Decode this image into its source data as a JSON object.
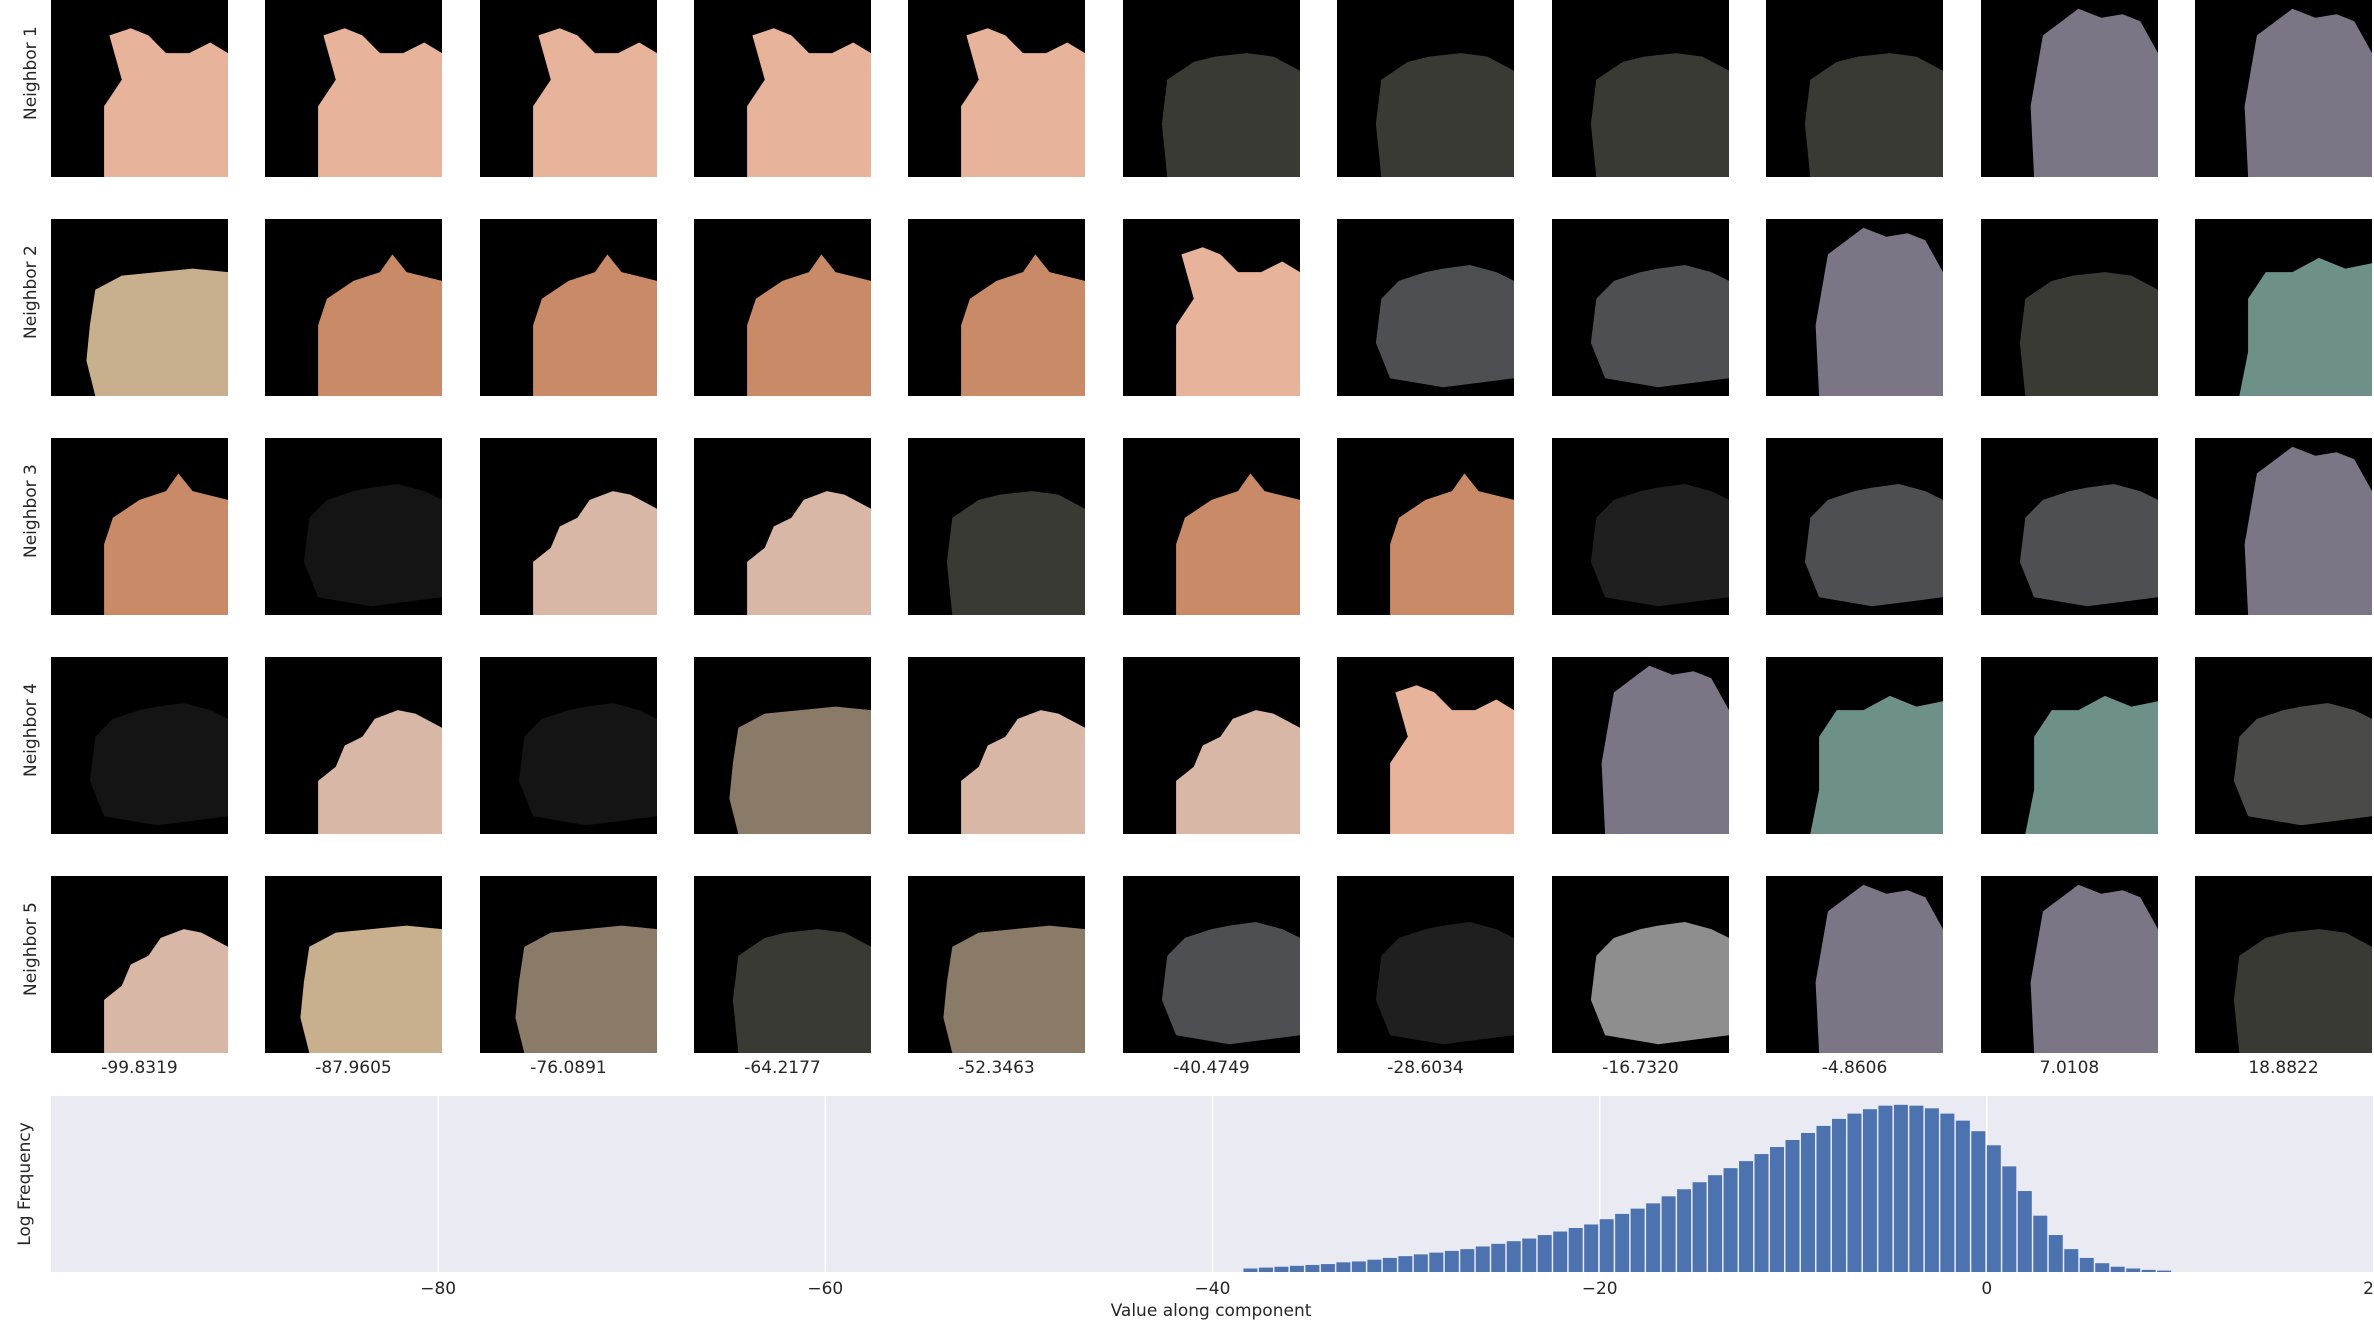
{
  "row_labels": [
    "Neighbor 1",
    "Neighbor 2",
    "Neighbor 3",
    "Neighbor 4",
    "Neighbor 5"
  ],
  "column_values": [
    "-99.8319",
    "-87.9605",
    "-76.0891",
    "-64.2177",
    "-52.3463",
    "-40.4749",
    "-28.6034",
    "-16.7320",
    "-4.8606",
    "7.0108",
    "18.8822"
  ],
  "tile_colors": [
    [
      "#e7b39b",
      "#e7b39b",
      "#e7b39b",
      "#e7b39b",
      "#e7b39b",
      "#3a3a35",
      "#3a3a35",
      "#3a3a35",
      "#3a3a35",
      "#7b7585",
      "#7b7585"
    ],
    [
      "#c8b08e",
      "#c98a68",
      "#c98a68",
      "#c98a68",
      "#c98a68",
      "#e7b39b",
      "#4e4f52",
      "#4e4f52",
      "#7b7585",
      "#3a3a35",
      "#6d9088"
    ],
    [
      "#c98a68",
      "#141414",
      "#d8b7a6",
      "#d8b7a6",
      "#3a3a35",
      "#c98a68",
      "#c98a68",
      "#1f1f1f",
      "#4e4f52",
      "#4e4f52",
      "#7b7585"
    ],
    [
      "#141414",
      "#d8b7a6",
      "#141414",
      "#8a7a68",
      "#d8b7a6",
      "#d8b7a6",
      "#e7b39b",
      "#7b7585",
      "#6d9088",
      "#6d9088",
      "#4a4a48"
    ],
    [
      "#d8b7a6",
      "#c8b08e",
      "#8a7a68",
      "#3a3a35",
      "#8a7a68",
      "#4e4f52",
      "#1f1f1f",
      "#8e8e8e",
      "#7b7585",
      "#7b7585",
      "#3a3a35"
    ]
  ],
  "tile_shapes": [
    [
      "A",
      "A",
      "A",
      "A",
      "A",
      "B",
      "B",
      "B",
      "B",
      "C",
      "C"
    ],
    [
      "D",
      "E",
      "E",
      "E",
      "E",
      "A",
      "F",
      "F",
      "C",
      "B",
      "G"
    ],
    [
      "E",
      "F",
      "H",
      "H",
      "B",
      "E",
      "E",
      "F",
      "F",
      "F",
      "C"
    ],
    [
      "F",
      "H",
      "F",
      "D",
      "H",
      "H",
      "A",
      "C",
      "G",
      "G",
      "F"
    ],
    [
      "H",
      "D",
      "D",
      "B",
      "D",
      "F",
      "F",
      "F",
      "C",
      "C",
      "B"
    ]
  ],
  "chart_data": {
    "type": "bar",
    "xlabel": "Value along component",
    "ylabel": "Log Frequency",
    "xlim": [
      -100,
      20
    ],
    "ylim": [
      0,
      10
    ],
    "x_ticks": [
      -80,
      -60,
      -40,
      -20,
      0,
      20
    ],
    "x_tick_labels": [
      "−80",
      "−60",
      "−40",
      "−20",
      "0",
      "20"
    ],
    "grid": true,
    "bin_width": 0.8,
    "bin_starts": [
      -38.4,
      -37.6,
      -36.8,
      -36.0,
      -35.2,
      -34.4,
      -33.6,
      -32.8,
      -32.0,
      -31.2,
      -30.4,
      -29.6,
      -28.8,
      -28.0,
      -27.2,
      -26.4,
      -25.6,
      -24.8,
      -24.0,
      -23.2,
      -22.4,
      -21.6,
      -20.8,
      -20.0,
      -19.2,
      -18.4,
      -17.6,
      -16.8,
      -16.0,
      -15.2,
      -14.4,
      -13.6,
      -12.8,
      -12.0,
      -11.2,
      -10.4,
      -9.6,
      -8.8,
      -8.0,
      -7.2,
      -6.4,
      -5.6,
      -4.8,
      -4.0,
      -3.2,
      -2.4,
      -1.6,
      -0.8,
      0.0,
      0.8,
      1.6,
      2.4,
      3.2,
      4.0,
      4.8,
      5.6,
      6.4,
      7.2,
      8.0,
      8.8
    ],
    "values": [
      0.2,
      0.25,
      0.3,
      0.35,
      0.4,
      0.45,
      0.55,
      0.6,
      0.7,
      0.8,
      0.9,
      1.0,
      1.1,
      1.2,
      1.3,
      1.45,
      1.6,
      1.75,
      1.9,
      2.1,
      2.3,
      2.5,
      2.7,
      3.0,
      3.3,
      3.6,
      3.9,
      4.3,
      4.7,
      5.1,
      5.5,
      5.9,
      6.3,
      6.7,
      7.1,
      7.5,
      7.9,
      8.3,
      8.7,
      9.0,
      9.25,
      9.45,
      9.5,
      9.45,
      9.3,
      9.0,
      8.6,
      8.0,
      7.2,
      6.0,
      4.6,
      3.2,
      2.1,
      1.3,
      0.8,
      0.5,
      0.3,
      0.2,
      0.12,
      0.08
    ]
  }
}
